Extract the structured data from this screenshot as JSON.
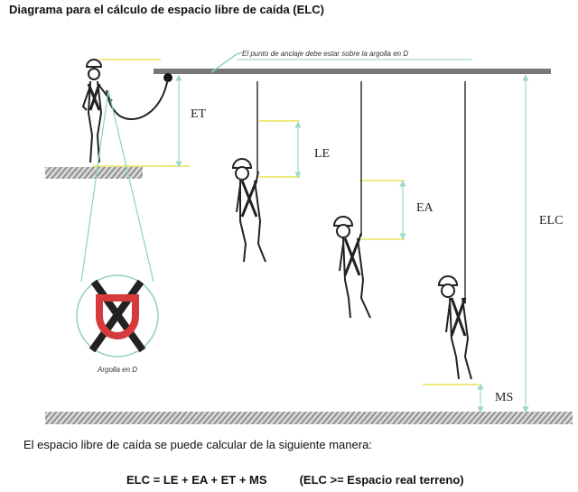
{
  "title": "Diagrama para el cálculo de espacio libre de caída (ELC)",
  "diagram": {
    "anchor_note": "El punto de anclaje debe estar sobre la argolla en D",
    "d_ring_caption": "Argolla en D",
    "labels": {
      "et": "ET",
      "le": "LE",
      "ea": "EA",
      "elc": "ELC",
      "ms": "MS"
    },
    "colors": {
      "guide": "#e8e25a",
      "dim": "#9fd8c8",
      "leader": "#8fd4ae",
      "ring": "#d63a3a",
      "ground": "#9a9a9a",
      "beam": "#777777"
    }
  },
  "intro": "El espacio libre de caída se puede calcular de la siguiente manera:",
  "formula": {
    "equation": "ELC = LE + EA + ET + MS",
    "condition": "(ELC >= Espacio real terreno)"
  }
}
